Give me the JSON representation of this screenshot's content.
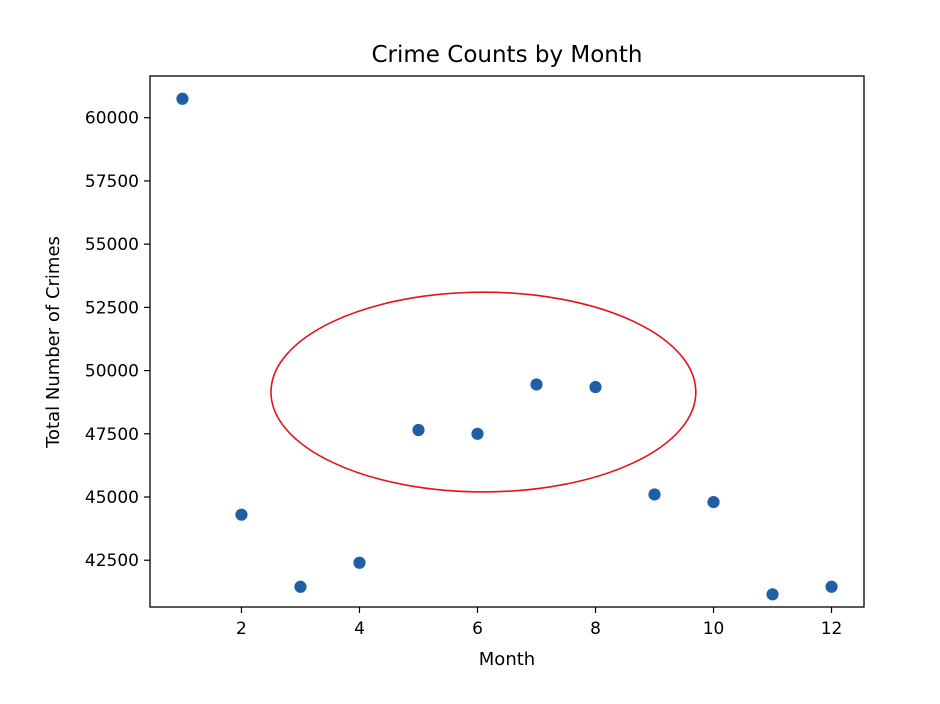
{
  "chart_data": {
    "type": "scatter",
    "title": "Crime Counts by Month",
    "xlabel": "Month",
    "ylabel": "Total Number of Crimes",
    "xlim": [
      0.45,
      12.55
    ],
    "ylim": [
      40650,
      61650
    ],
    "xticks": [
      2,
      4,
      6,
      8,
      10,
      12
    ],
    "yticks": [
      42500,
      45000,
      47500,
      50000,
      52500,
      55000,
      57500,
      60000
    ],
    "grid": false,
    "series": [
      {
        "color": "#1f5fa6",
        "points": [
          {
            "x": 1,
            "y": 60750
          },
          {
            "x": 2,
            "y": 44300
          },
          {
            "x": 3,
            "y": 41450
          },
          {
            "x": 4,
            "y": 42400
          },
          {
            "x": 5,
            "y": 47650
          },
          {
            "x": 6,
            "y": 47500
          },
          {
            "x": 7,
            "y": 49450
          },
          {
            "x": 8,
            "y": 49350
          },
          {
            "x": 9,
            "y": 45100
          },
          {
            "x": 10,
            "y": 44800
          },
          {
            "x": 11,
            "y": 41150
          },
          {
            "x": 12,
            "y": 41450
          }
        ]
      }
    ],
    "annotations": [
      {
        "shape": "ellipse",
        "color": "#e3131b",
        "center": {
          "x": 6.1,
          "y": 49150
        },
        "radius_x": 3.6,
        "radius_y": 3950
      }
    ]
  }
}
